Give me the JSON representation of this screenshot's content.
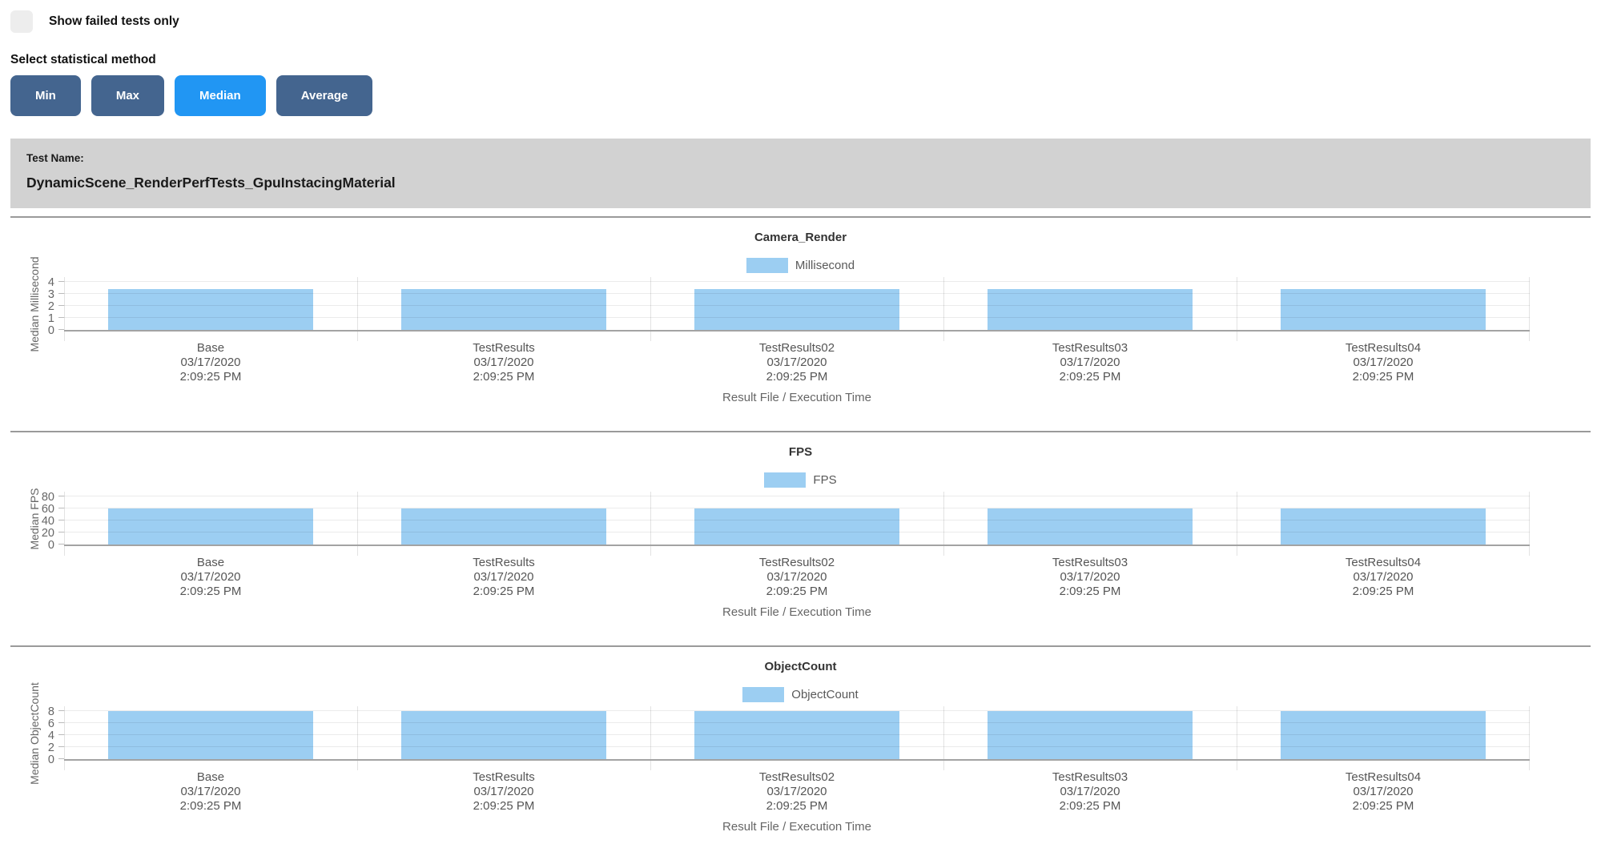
{
  "controls": {
    "show_failed_label": "Show failed tests only",
    "show_failed_checked": false,
    "stat_method_label": "Select statistical method",
    "buttons": [
      {
        "label": "Min",
        "active": false
      },
      {
        "label": "Max",
        "active": false
      },
      {
        "label": "Median",
        "active": true
      },
      {
        "label": "Average",
        "active": false
      }
    ]
  },
  "test_header": {
    "label": "Test Name:",
    "name": "DynamicScene_RenderPerfTests_GpuInstacingMaterial"
  },
  "colors": {
    "bar_fill": "#9ccef2",
    "button": "#44658f",
    "button_active": "#2196f3",
    "header_bg": "#d2d2d2",
    "separator": "#9a9a9a"
  },
  "chart_data": [
    {
      "type": "bar",
      "title": "Camera_Render",
      "legend": "Millisecond",
      "ylabel": "Median Millisecond",
      "xlabel": "Result File / Execution Time",
      "ylim": [
        0,
        4
      ],
      "yticks": [
        0,
        1,
        2,
        3,
        4
      ],
      "grid": true,
      "legend_position": "top-center",
      "categories": [
        "Base",
        "TestResults",
        "TestResults02",
        "TestResults03",
        "TestResults04"
      ],
      "category_date": "03/17/2020",
      "category_time": "2:09:25 PM",
      "values": [
        3.4,
        3.4,
        3.4,
        3.4,
        3.4
      ]
    },
    {
      "type": "bar",
      "title": "FPS",
      "legend": "FPS",
      "ylabel": "Median FPS",
      "xlabel": "Result File / Execution Time",
      "ylim": [
        0,
        80
      ],
      "yticks": [
        0,
        20,
        40,
        60,
        80
      ],
      "grid": true,
      "legend_position": "top-center",
      "categories": [
        "Base",
        "TestResults",
        "TestResults02",
        "TestResults03",
        "TestResults04"
      ],
      "category_date": "03/17/2020",
      "category_time": "2:09:25 PM",
      "values": [
        59.7,
        59.7,
        59.7,
        59.7,
        59.7
      ]
    },
    {
      "type": "bar",
      "title": "ObjectCount",
      "legend": "ObjectCount",
      "ylabel": "Median ObjectCount",
      "xlabel": "Result File / Execution Time",
      "ylim": [
        0,
        8
      ],
      "yticks": [
        0,
        2,
        4,
        6,
        8
      ],
      "grid": true,
      "legend_position": "top-center",
      "categories": [
        "Base",
        "TestResults",
        "TestResults02",
        "TestResults03",
        "TestResults04"
      ],
      "category_date": "03/17/2020",
      "category_time": "2:09:25 PM",
      "values": [
        8,
        8,
        8,
        8,
        8
      ]
    }
  ]
}
